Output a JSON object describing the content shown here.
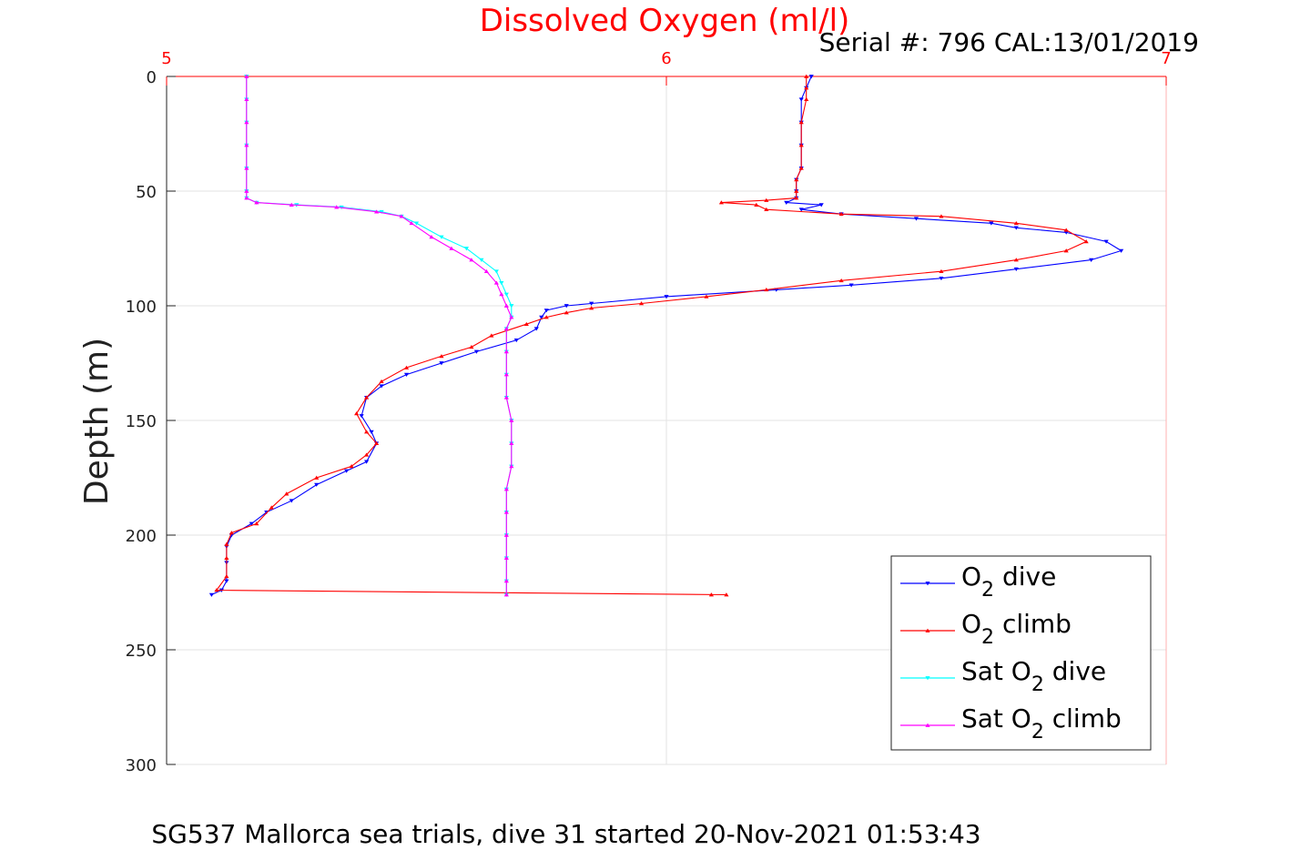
{
  "chart_data": {
    "type": "line",
    "title": "Dissolved Oxygen (ml/l)",
    "subtitle": "Serial #: 796  CAL:13/01/2019",
    "caption": "SG537 Mallorca sea trials, dive 31 started 20-Nov-2021 01:53:43",
    "ylabel": "Depth (m)",
    "xlabel": "",
    "xlim": [
      5,
      7
    ],
    "ylim": [
      0,
      300
    ],
    "y_reversed": true,
    "x_axis_position": "top",
    "x_ticks": [
      "5",
      "6",
      "7"
    ],
    "y_ticks": [
      "0",
      "50",
      "100",
      "150",
      "200",
      "250",
      "300"
    ],
    "grid": true,
    "legend_position": "bottom-right",
    "series": [
      {
        "name": "O2 dive",
        "legend": {
          "base": "O",
          "sub": "2",
          "tail": " dive"
        },
        "color": "#0000ff",
        "marker": "down-triangle",
        "points": [
          [
            6.29,
            0
          ],
          [
            6.28,
            5
          ],
          [
            6.27,
            10
          ],
          [
            6.27,
            20
          ],
          [
            6.27,
            30
          ],
          [
            6.27,
            40
          ],
          [
            6.26,
            45
          ],
          [
            6.26,
            50
          ],
          [
            6.26,
            53
          ],
          [
            6.24,
            55
          ],
          [
            6.31,
            56
          ],
          [
            6.27,
            58
          ],
          [
            6.35,
            60
          ],
          [
            6.5,
            62
          ],
          [
            6.65,
            64
          ],
          [
            6.7,
            66
          ],
          [
            6.8,
            68
          ],
          [
            6.88,
            72
          ],
          [
            6.91,
            76
          ],
          [
            6.85,
            80
          ],
          [
            6.7,
            84
          ],
          [
            6.55,
            88
          ],
          [
            6.37,
            91
          ],
          [
            6.22,
            93
          ],
          [
            6.0,
            96
          ],
          [
            5.85,
            99
          ],
          [
            5.8,
            100
          ],
          [
            5.76,
            102
          ],
          [
            5.75,
            105
          ],
          [
            5.74,
            110
          ],
          [
            5.7,
            115
          ],
          [
            5.62,
            120
          ],
          [
            5.55,
            125
          ],
          [
            5.48,
            130
          ],
          [
            5.43,
            135
          ],
          [
            5.4,
            140
          ],
          [
            5.39,
            148
          ],
          [
            5.41,
            155
          ],
          [
            5.42,
            160
          ],
          [
            5.4,
            168
          ],
          [
            5.36,
            172
          ],
          [
            5.3,
            178
          ],
          [
            5.25,
            185
          ],
          [
            5.2,
            190
          ],
          [
            5.17,
            195
          ],
          [
            5.13,
            200
          ],
          [
            5.12,
            205
          ],
          [
            5.12,
            212
          ],
          [
            5.12,
            220
          ],
          [
            5.11,
            224
          ],
          [
            5.09,
            226
          ]
        ]
      },
      {
        "name": "O2 climb",
        "legend": {
          "base": "O",
          "sub": "2",
          "tail": " climb"
        },
        "color": "#ff0000",
        "marker": "up-triangle",
        "points": [
          [
            6.09,
            226
          ],
          [
            6.12,
            226
          ],
          [
            5.1,
            224
          ],
          [
            5.12,
            218
          ],
          [
            5.12,
            210
          ],
          [
            5.12,
            204
          ],
          [
            5.13,
            199
          ],
          [
            5.18,
            195
          ],
          [
            5.21,
            188
          ],
          [
            5.24,
            182
          ],
          [
            5.3,
            175
          ],
          [
            5.37,
            170
          ],
          [
            5.4,
            165
          ],
          [
            5.42,
            160
          ],
          [
            5.4,
            155
          ],
          [
            5.38,
            147
          ],
          [
            5.4,
            140
          ],
          [
            5.43,
            133
          ],
          [
            5.48,
            127
          ],
          [
            5.55,
            122
          ],
          [
            5.61,
            118
          ],
          [
            5.65,
            113
          ],
          [
            5.72,
            108
          ],
          [
            5.76,
            105
          ],
          [
            5.8,
            103
          ],
          [
            5.85,
            101
          ],
          [
            5.95,
            99
          ],
          [
            6.08,
            96
          ],
          [
            6.2,
            93
          ],
          [
            6.35,
            89
          ],
          [
            6.55,
            85
          ],
          [
            6.7,
            80
          ],
          [
            6.8,
            76
          ],
          [
            6.84,
            72
          ],
          [
            6.8,
            67
          ],
          [
            6.7,
            64
          ],
          [
            6.55,
            61
          ],
          [
            6.35,
            60
          ],
          [
            6.2,
            58
          ],
          [
            6.18,
            56
          ],
          [
            6.11,
            55
          ],
          [
            6.2,
            54
          ],
          [
            6.26,
            53
          ],
          [
            6.26,
            50
          ],
          [
            6.26,
            45
          ],
          [
            6.27,
            40
          ],
          [
            6.27,
            30
          ],
          [
            6.27,
            20
          ],
          [
            6.28,
            10
          ],
          [
            6.28,
            5
          ],
          [
            6.28,
            0
          ]
        ]
      },
      {
        "name": "Sat O2 dive",
        "legend": {
          "base": "Sat O",
          "sub": "2",
          "tail": " dive"
        },
        "color": "#00ffff",
        "marker": "down-triangle",
        "points": [
          [
            5.16,
            0
          ],
          [
            5.16,
            10
          ],
          [
            5.16,
            20
          ],
          [
            5.16,
            30
          ],
          [
            5.16,
            40
          ],
          [
            5.16,
            50
          ],
          [
            5.16,
            53
          ],
          [
            5.18,
            55
          ],
          [
            5.26,
            56
          ],
          [
            5.35,
            57
          ],
          [
            5.43,
            59
          ],
          [
            5.47,
            61
          ],
          [
            5.5,
            64
          ],
          [
            5.55,
            70
          ],
          [
            5.6,
            75
          ],
          [
            5.63,
            80
          ],
          [
            5.66,
            85
          ],
          [
            5.67,
            90
          ],
          [
            5.68,
            95
          ],
          [
            5.69,
            100
          ],
          [
            5.69,
            105
          ],
          [
            5.68,
            110
          ],
          [
            5.68,
            120
          ],
          [
            5.68,
            130
          ],
          [
            5.68,
            140
          ],
          [
            5.69,
            150
          ],
          [
            5.69,
            160
          ],
          [
            5.69,
            170
          ],
          [
            5.68,
            180
          ],
          [
            5.68,
            190
          ],
          [
            5.68,
            200
          ],
          [
            5.68,
            210
          ],
          [
            5.68,
            220
          ],
          [
            5.68,
            226
          ]
        ]
      },
      {
        "name": "Sat O2 climb",
        "legend": {
          "base": "Sat O",
          "sub": "2",
          "tail": " climb"
        },
        "color": "#ff00ff",
        "marker": "up-triangle",
        "points": [
          [
            5.68,
            226
          ],
          [
            5.68,
            220
          ],
          [
            5.68,
            210
          ],
          [
            5.68,
            200
          ],
          [
            5.68,
            190
          ],
          [
            5.68,
            180
          ],
          [
            5.69,
            170
          ],
          [
            5.69,
            160
          ],
          [
            5.69,
            150
          ],
          [
            5.68,
            140
          ],
          [
            5.68,
            130
          ],
          [
            5.68,
            120
          ],
          [
            5.68,
            110
          ],
          [
            5.69,
            105
          ],
          [
            5.68,
            100
          ],
          [
            5.67,
            95
          ],
          [
            5.66,
            90
          ],
          [
            5.64,
            85
          ],
          [
            5.61,
            80
          ],
          [
            5.57,
            75
          ],
          [
            5.53,
            70
          ],
          [
            5.49,
            64
          ],
          [
            5.47,
            61
          ],
          [
            5.42,
            59
          ],
          [
            5.34,
            57
          ],
          [
            5.25,
            56
          ],
          [
            5.18,
            55
          ],
          [
            5.16,
            53
          ],
          [
            5.16,
            50
          ],
          [
            5.16,
            40
          ],
          [
            5.16,
            30
          ],
          [
            5.16,
            20
          ],
          [
            5.16,
            10
          ],
          [
            5.16,
            0
          ]
        ]
      }
    ]
  }
}
